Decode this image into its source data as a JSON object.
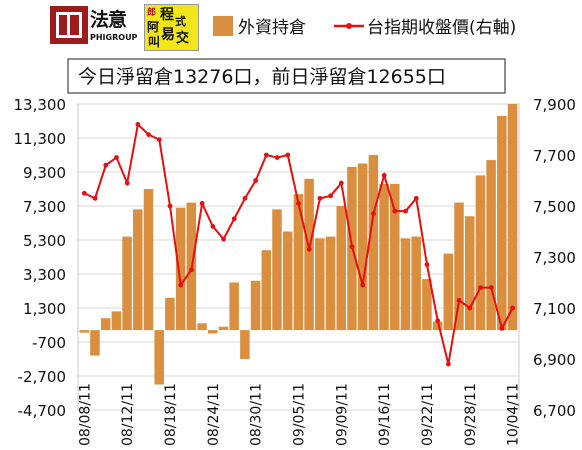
{
  "logos": {
    "left_brand": "法意",
    "left_sub": "PHIGROUP",
    "right_chars": [
      "郎",
      "阿",
      "程",
      "式",
      "叫",
      "易",
      "交"
    ]
  },
  "colors": {
    "bar": "#d98f3f",
    "line": "#e61010",
    "dot": "#e61010",
    "grid": "#d8d8d8"
  },
  "chart_data": {
    "type": "bar+line",
    "headline": "今日淨留倉13276口，前日淨留倉12655口",
    "legend": [
      {
        "label": "外資持倉",
        "kind": "bar"
      },
      {
        "label": "台指期收盤價(右軸)",
        "kind": "line"
      }
    ],
    "legend_placement": "top",
    "grid": true,
    "x_tick_labels": [
      "08/08/11",
      "08/12/11",
      "08/18/11",
      "08/24/11",
      "08/30/11",
      "09/05/11",
      "09/09/11",
      "09/16/11",
      "09/22/11",
      "09/28/11",
      "10/04/11"
    ],
    "x_tick_index": [
      0,
      4,
      8,
      12,
      16,
      20,
      24,
      28,
      32,
      36,
      40
    ],
    "y_left": {
      "ylim": [
        -4700,
        13300
      ],
      "ticks": [
        -4700,
        -2700,
        -700,
        1300,
        3300,
        5300,
        7300,
        9300,
        11300,
        13300
      ],
      "tick_labels": [
        "-4,700",
        "-2,700",
        "-700",
        "1,300",
        "3,300",
        "5,300",
        "7,300",
        "9,300",
        "11,300",
        "13,300"
      ]
    },
    "y_right": {
      "ylim": [
        6700,
        7900
      ],
      "ticks": [
        6700,
        6900,
        7100,
        7300,
        7500,
        7700,
        7900
      ],
      "tick_labels": [
        "6,700",
        "6,900",
        "7,100",
        "7,300",
        "7,500",
        "7,700",
        "7,900"
      ]
    },
    "series": [
      {
        "name": "外資持倉",
        "axis": "left",
        "kind": "bar",
        "values": [
          -150,
          -1500,
          700,
          1100,
          5500,
          7100,
          8300,
          -3200,
          1900,
          7200,
          7500,
          400,
          -200,
          200,
          2800,
          -1700,
          2900,
          4700,
          7100,
          5800,
          8000,
          8900,
          5400,
          5500,
          7300,
          9600,
          9800,
          10300,
          8600,
          8600,
          5400,
          5500,
          3000,
          500,
          4500,
          7500,
          6700,
          9100,
          10000,
          12600,
          13300
        ]
      },
      {
        "name": "台指期收盤價(右軸)",
        "axis": "right",
        "kind": "line",
        "values": [
          7550,
          7530,
          7660,
          7690,
          7590,
          7820,
          7780,
          7760,
          7500,
          7190,
          7250,
          7510,
          7420,
          7370,
          7450,
          7530,
          7600,
          7700,
          7690,
          7700,
          7510,
          7330,
          7530,
          7540,
          7590,
          7340,
          7190,
          7470,
          7620,
          7480,
          7480,
          7530,
          7270,
          7050,
          6880,
          7130,
          7100,
          7180,
          7180,
          7020,
          7100
        ]
      }
    ]
  }
}
